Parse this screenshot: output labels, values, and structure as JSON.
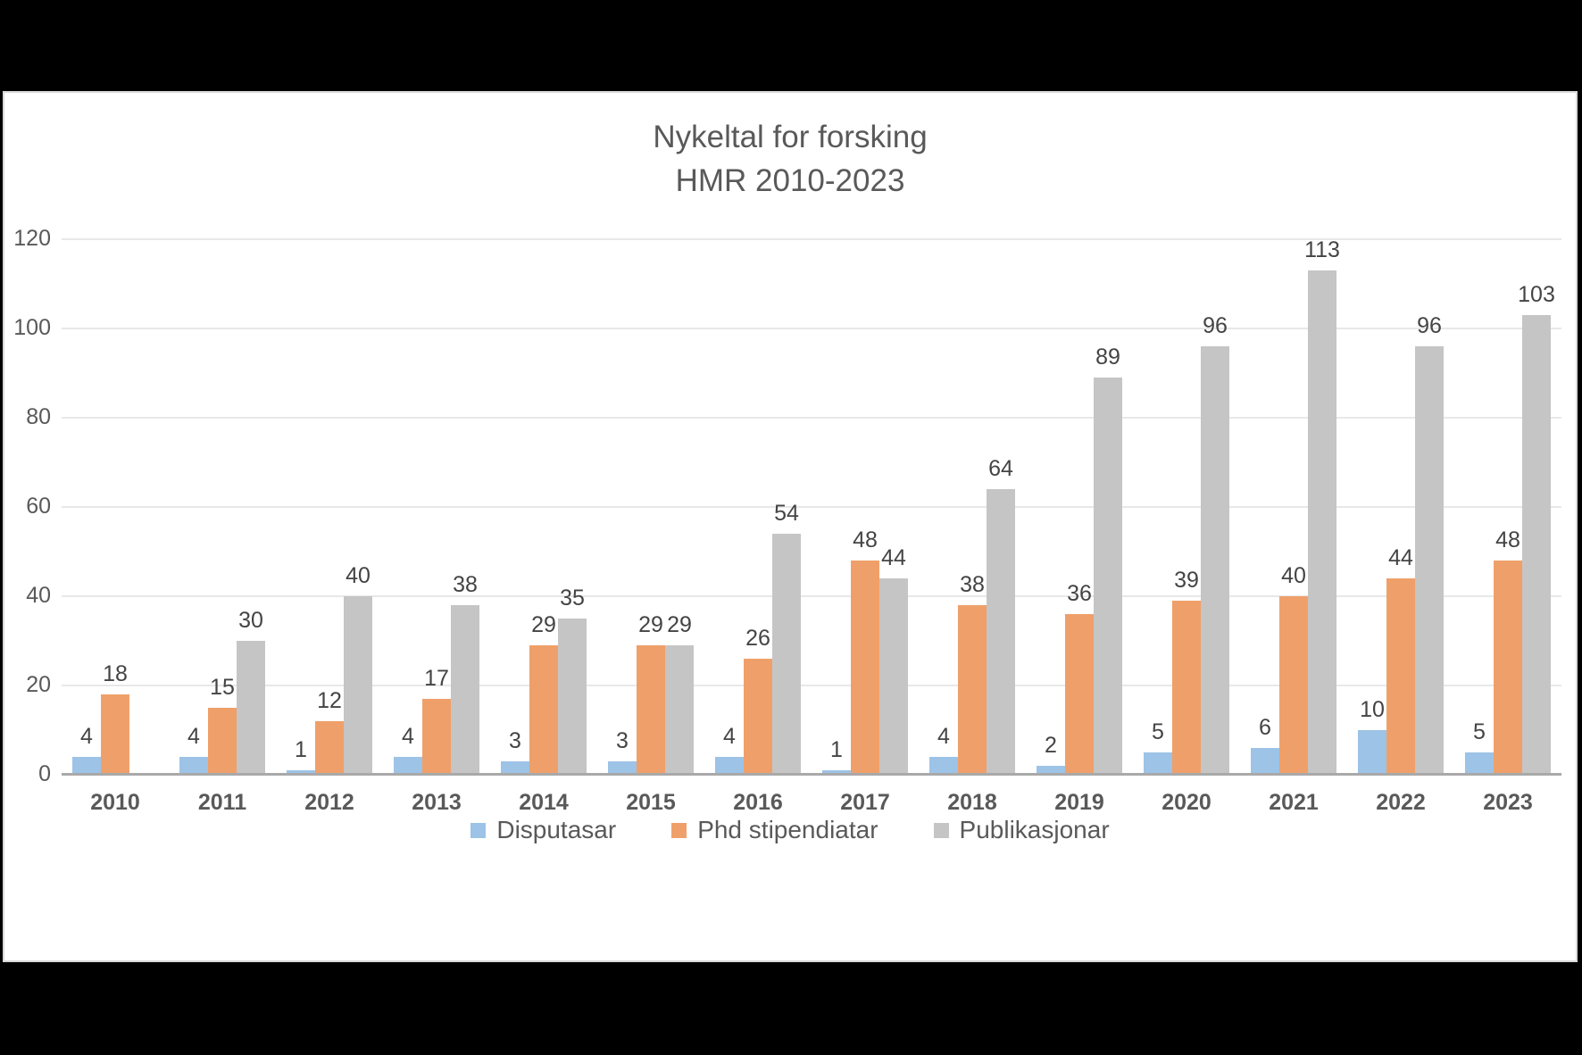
{
  "chart_data": {
    "type": "bar",
    "title": "Nykeltal for forsking",
    "subtitle": "HMR 2010-2023",
    "categories": [
      "2010",
      "2011",
      "2012",
      "2013",
      "2014",
      "2015",
      "2016",
      "2017",
      "2018",
      "2019",
      "2020",
      "2021",
      "2022",
      "2023"
    ],
    "series": [
      {
        "name": "Disputasar",
        "color": "#9DC3E6",
        "values": [
          4,
          4,
          1,
          4,
          3,
          3,
          4,
          1,
          4,
          2,
          5,
          6,
          10,
          5
        ]
      },
      {
        "name": "Phd stipendiatar",
        "color": "#EFA06A",
        "values": [
          18,
          15,
          12,
          17,
          29,
          29,
          26,
          48,
          38,
          36,
          39,
          40,
          44,
          48
        ]
      },
      {
        "name": "Publikasjonar",
        "color": "#C5C5C5",
        "values": [
          null,
          30,
          40,
          38,
          35,
          29,
          54,
          44,
          64,
          89,
          96,
          113,
          96,
          103
        ]
      }
    ],
    "ylim": [
      0,
      120
    ],
    "yticks": [
      0,
      20,
      40,
      60,
      80,
      100,
      120
    ],
    "grid": true,
    "legend_position": "bottom",
    "colors": {
      "background": "#000000",
      "panel": "#ffffff",
      "title_text": "#595959",
      "axis_text": "#595959",
      "data_label_text": "#444444",
      "gridline": "#e8e8e8",
      "axis_line": "#a9a9a9"
    }
  }
}
